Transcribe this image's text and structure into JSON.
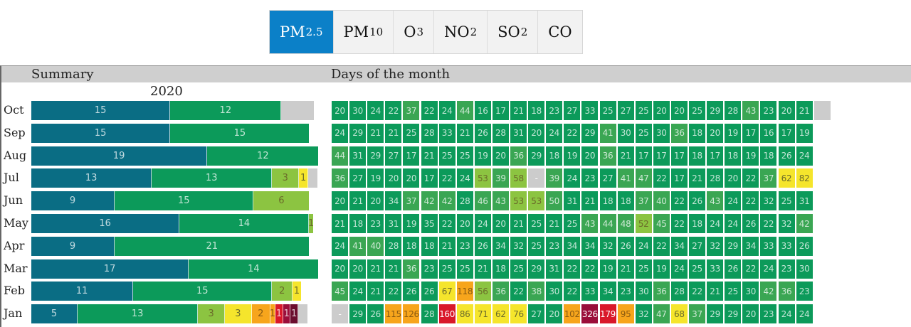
{
  "pollutants": {
    "active": 0,
    "tabs": [
      {
        "base": "PM",
        "sub": "2.5"
      },
      {
        "base": "PM",
        "sub": "10"
      },
      {
        "base": "O",
        "sub": "3"
      },
      {
        "base": "NO",
        "sub": "2"
      },
      {
        "base": "SO",
        "sub": "2"
      },
      {
        "base": "CO",
        "sub": ""
      }
    ]
  },
  "headers": {
    "summary": "Summary",
    "days": "Days of the month",
    "year": "2020"
  },
  "colors": {
    "dark_teal": "#0a6d84",
    "green": "#0c9a5a",
    "mid_green": "#3aa653",
    "light_green": "#8cc441",
    "yellow": "#f5e52c",
    "orange": "#f7a51c",
    "red": "#d9182a",
    "dark_red": "#9a0e3a",
    "maroon": "#6a0e2e",
    "grey": "#cccccc"
  },
  "months": [
    {
      "name": "Oct",
      "summary": [
        {
          "value": "15",
          "color": "dark_teal",
          "weight": 15
        },
        {
          "value": "12",
          "color": "green",
          "weight": 12
        },
        {
          "value": "",
          "color": "grey",
          "weight": 3.5
        }
      ],
      "days": [
        20,
        30,
        24,
        22,
        37,
        22,
        24,
        44,
        16,
        17,
        21,
        18,
        23,
        27,
        33,
        25,
        27,
        25,
        20,
        20,
        25,
        29,
        28,
        43,
        23,
        20,
        21,
        ""
      ]
    },
    {
      "name": "Sep",
      "summary": [
        {
          "value": "15",
          "color": "dark_teal",
          "weight": 15
        },
        {
          "value": "15",
          "color": "green",
          "weight": 15
        }
      ],
      "days": [
        24,
        29,
        21,
        21,
        25,
        28,
        33,
        21,
        26,
        28,
        31,
        20,
        24,
        22,
        29,
        41,
        30,
        25,
        30,
        36,
        18,
        20,
        19,
        17,
        16,
        17,
        19
      ]
    },
    {
      "name": "Aug",
      "summary": [
        {
          "value": "19",
          "color": "dark_teal",
          "weight": 19
        },
        {
          "value": "12",
          "color": "green",
          "weight": 12
        }
      ],
      "days": [
        44,
        31,
        29,
        27,
        17,
        21,
        25,
        25,
        19,
        20,
        36,
        29,
        18,
        19,
        20,
        36,
        21,
        17,
        17,
        17,
        18,
        17,
        18,
        19,
        18,
        26,
        24
      ]
    },
    {
      "name": "Jul",
      "summary": [
        {
          "value": "13",
          "color": "dark_teal",
          "weight": 13
        },
        {
          "value": "13",
          "color": "green",
          "weight": 13
        },
        {
          "value": "3",
          "color": "light_green",
          "weight": 2.9
        },
        {
          "value": "1",
          "color": "yellow",
          "weight": 1
        },
        {
          "value": "",
          "color": "grey",
          "weight": 1
        }
      ],
      "days": [
        36,
        27,
        19,
        20,
        20,
        17,
        22,
        24,
        53,
        39,
        58,
        "-",
        39,
        24,
        23,
        27,
        41,
        47,
        22,
        17,
        21,
        28,
        20,
        22,
        37,
        62,
        82
      ]
    },
    {
      "name": "Jun",
      "summary": [
        {
          "value": "9",
          "color": "dark_teal",
          "weight": 9
        },
        {
          "value": "15",
          "color": "green",
          "weight": 15
        },
        {
          "value": "6",
          "color": "light_green",
          "weight": 6
        }
      ],
      "days": [
        20,
        21,
        20,
        34,
        37,
        42,
        42,
        28,
        46,
        43,
        53,
        53,
        50,
        31,
        21,
        18,
        18,
        37,
        40,
        22,
        26,
        43,
        24,
        22,
        32,
        25,
        31
      ]
    },
    {
      "name": "May",
      "summary": [
        {
          "value": "16",
          "color": "dark_teal",
          "weight": 16
        },
        {
          "value": "14",
          "color": "green",
          "weight": 14
        },
        {
          "value": "1",
          "color": "light_green",
          "weight": 0.4
        }
      ],
      "days": [
        21,
        18,
        23,
        31,
        19,
        35,
        22,
        20,
        24,
        20,
        21,
        25,
        21,
        25,
        43,
        44,
        48,
        52,
        45,
        22,
        18,
        24,
        24,
        26,
        22,
        32,
        42
      ]
    },
    {
      "name": "Apr",
      "summary": [
        {
          "value": "9",
          "color": "dark_teal",
          "weight": 9
        },
        {
          "value": "21",
          "color": "green",
          "weight": 21
        }
      ],
      "days": [
        24,
        41,
        40,
        28,
        18,
        18,
        21,
        23,
        26,
        34,
        32,
        25,
        23,
        34,
        34,
        32,
        26,
        24,
        22,
        34,
        27,
        32,
        29,
        34,
        33,
        33,
        26
      ]
    },
    {
      "name": "Mar",
      "summary": [
        {
          "value": "17",
          "color": "dark_teal",
          "weight": 17
        },
        {
          "value": "14",
          "color": "green",
          "weight": 14
        }
      ],
      "days": [
        20,
        20,
        21,
        21,
        36,
        23,
        25,
        25,
        21,
        18,
        25,
        29,
        31,
        22,
        22,
        19,
        21,
        25,
        19,
        24,
        25,
        33,
        26,
        22,
        24,
        23,
        30
      ]
    },
    {
      "name": "Feb",
      "summary": [
        {
          "value": "11",
          "color": "dark_teal",
          "weight": 11
        },
        {
          "value": "15",
          "color": "green",
          "weight": 15
        },
        {
          "value": "2",
          "color": "light_green",
          "weight": 2.2
        },
        {
          "value": "1",
          "color": "yellow",
          "weight": 0.9
        }
      ],
      "days": [
        45,
        24,
        21,
        22,
        26,
        26,
        67,
        118,
        56,
        36,
        22,
        38,
        30,
        22,
        33,
        34,
        23,
        30,
        36,
        28,
        22,
        21,
        25,
        30,
        42,
        36,
        23
      ]
    },
    {
      "name": "Jan",
      "summary": [
        {
          "value": "5",
          "color": "dark_teal",
          "weight": 5
        },
        {
          "value": "13",
          "color": "green",
          "weight": 13
        },
        {
          "value": "3",
          "color": "light_green",
          "weight": 2.9
        },
        {
          "value": "3",
          "color": "yellow",
          "weight": 2.9
        },
        {
          "value": "2",
          "color": "orange",
          "weight": 2
        },
        {
          "value": "1",
          "color": "orange",
          "weight": 0.55
        },
        {
          "value": "1",
          "color": "red",
          "weight": 0.85
        },
        {
          "value": "1",
          "color": "dark_red",
          "weight": 0.8
        },
        {
          "value": "1",
          "color": "maroon",
          "weight": 0.8
        },
        {
          "value": "",
          "color": "grey",
          "weight": 1
        }
      ],
      "days": [
        "-",
        29,
        26,
        115,
        126,
        28,
        160,
        86,
        71,
        62,
        76,
        27,
        20,
        102,
        326,
        179,
        95,
        32,
        47,
        68,
        37,
        29,
        29,
        20,
        23,
        24,
        24
      ]
    }
  ]
}
